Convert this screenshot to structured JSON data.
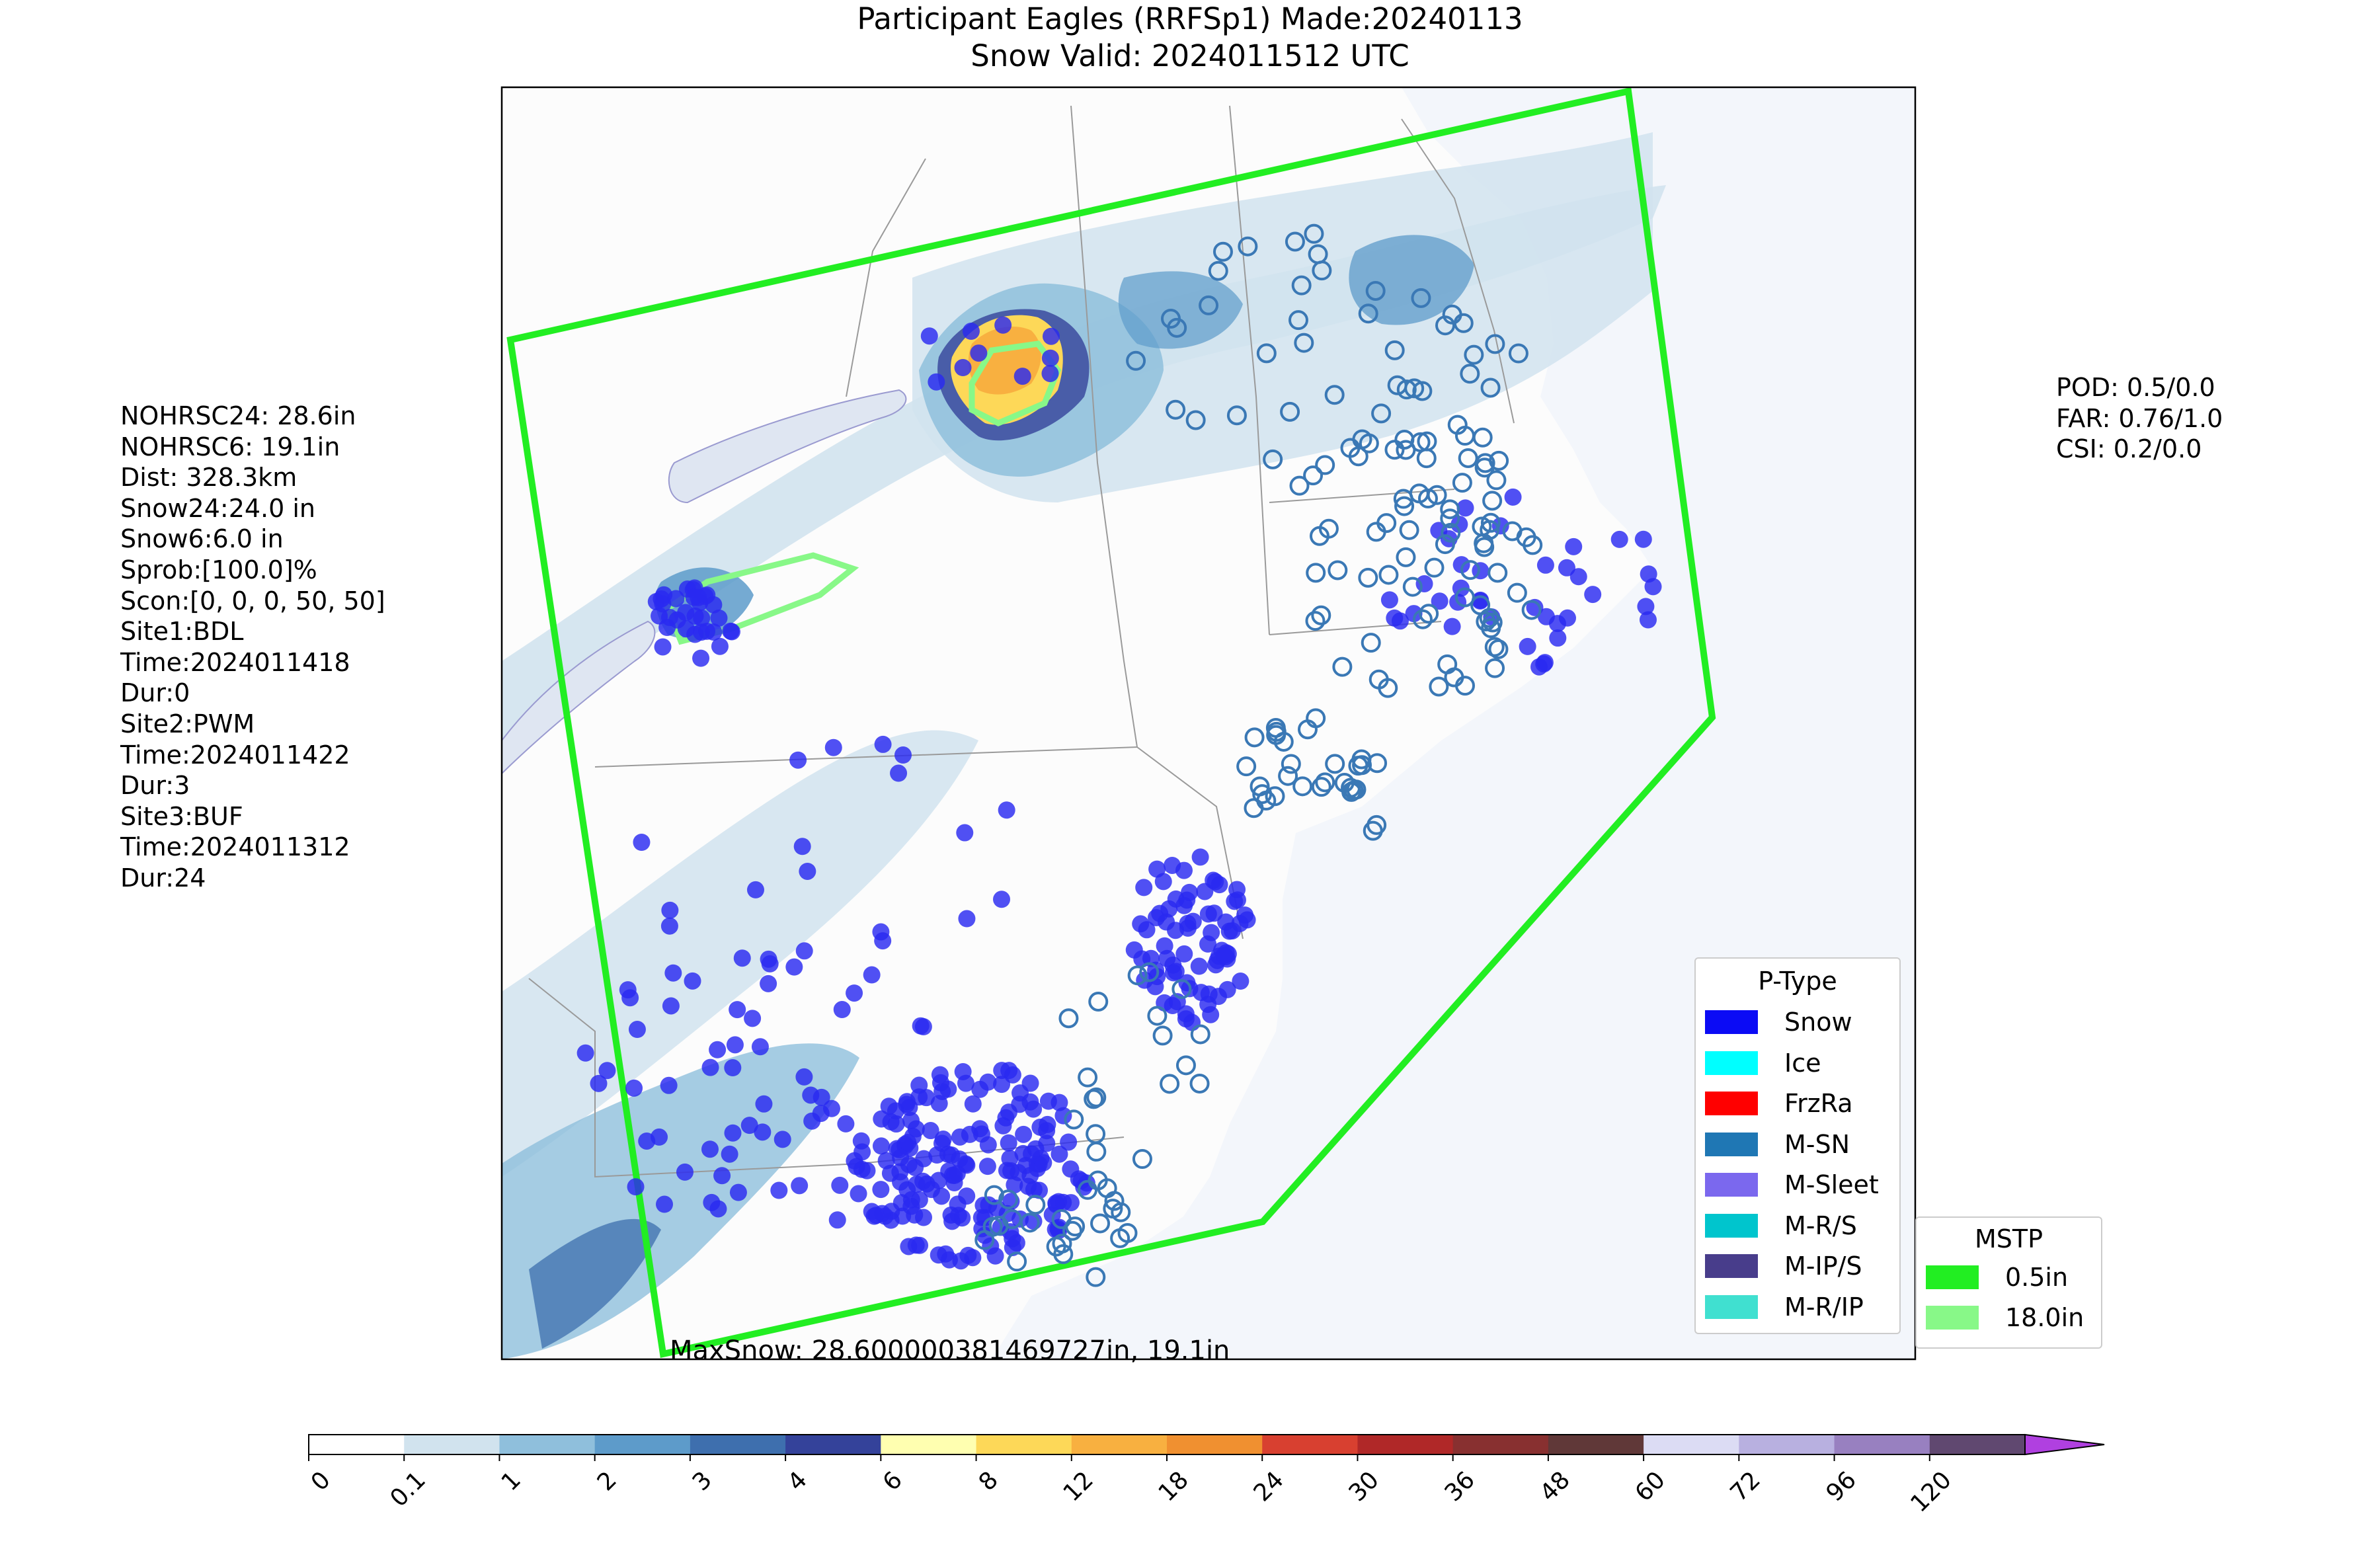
{
  "title": {
    "line1": "Participant Eagles (RRFSp1) Made:20240113",
    "line2": "Snow Valid: 2024011512 UTC"
  },
  "left_info": [
    "NOHRSC24: 28.6in",
    "NOHRSC6: 19.1in",
    "Dist: 328.3km",
    "Snow24:24.0 in",
    "Snow6:6.0 in",
    "Sprob:[100.0]%",
    "Scon:[0, 0, 0, 50, 50]",
    "Site1:BDL",
    "Time:2024011418",
    "Dur:0",
    "Site2:PWM",
    "Time:2024011422",
    "Dur:3",
    "Site3:BUF",
    "Time:2024011312",
    "Dur:24"
  ],
  "right_info": [
    "POD: 0.5/0.0",
    "FAR: 0.76/1.0",
    "CSI: 0.2/0.0"
  ],
  "max_snow_label": "MaxSnow: 28.600000381469727in, 19.1in",
  "ptype_legend": {
    "title": "P-Type",
    "items": [
      {
        "label": "Snow",
        "color": "#0b0bf5"
      },
      {
        "label": "Ice",
        "color": "#00ffff"
      },
      {
        "label": "FrzRa",
        "color": "#ff0000"
      },
      {
        "label": "M-SN",
        "color": "#1f77b4"
      },
      {
        "label": "M-Sleet",
        "color": "#7b68ee"
      },
      {
        "label": "M-R/S",
        "color": "#00c5cd"
      },
      {
        "label": "M-IP/S",
        "color": "#483d8b"
      },
      {
        "label": "M-R/IP",
        "color": "#40e0d0"
      }
    ]
  },
  "mstp_legend": {
    "title": "MSTP",
    "items": [
      {
        "label": "0.5in",
        "color": "#22ee22"
      },
      {
        "label": "18.0in",
        "color": "#88f888"
      }
    ]
  },
  "colorbar": {
    "ticks": [
      "0",
      "0.1",
      "1",
      "2",
      "3",
      "4",
      "6",
      "8",
      "12",
      "18",
      "24",
      "30",
      "36",
      "48",
      "60",
      "72",
      "96",
      "120"
    ],
    "colors": [
      "#ffffff",
      "#d1e3ee",
      "#8fbfdc",
      "#5d9bca",
      "#3e6fae",
      "#34429a",
      "#ffffb0",
      "#fdd858",
      "#f8b040",
      "#f09030",
      "#d84030",
      "#b02828",
      "#883030",
      "#603838",
      "#dcdcf4",
      "#b8b0e0",
      "#9880c0",
      "#604870"
    ],
    "extend_color": "#b040e0"
  },
  "colors": {
    "ocean": "#f3f6fb",
    "land": "#fcfcfc",
    "mstp_outline": "#22ee22",
    "mstp_inner": "#88f888",
    "obs_open": "#3a78b5",
    "obs_filled": "#2a2af0"
  }
}
